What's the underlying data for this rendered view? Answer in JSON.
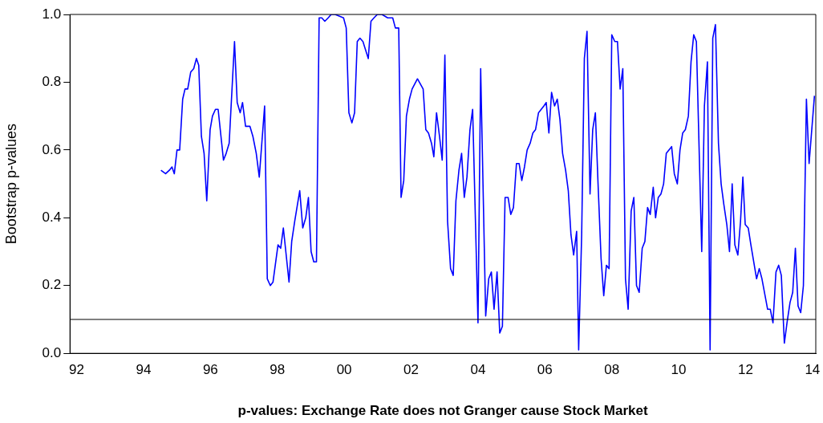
{
  "chart_data": {
    "type": "line",
    "xlabel": "p-values: Exchange Rate does not Granger cause Stock Market",
    "ylabel": "Bootstrap p-values",
    "xlim": [
      1991.8,
      2014.1
    ],
    "xticks": [
      {
        "value": 1992,
        "label": "92"
      },
      {
        "value": 1994,
        "label": "94"
      },
      {
        "value": 1996,
        "label": "96"
      },
      {
        "value": 1998,
        "label": "98"
      },
      {
        "value": 2000,
        "label": "00"
      },
      {
        "value": 2002,
        "label": "02"
      },
      {
        "value": 2004,
        "label": "04"
      },
      {
        "value": 2006,
        "label": "06"
      },
      {
        "value": 2008,
        "label": "08"
      },
      {
        "value": 2010,
        "label": "10"
      },
      {
        "value": 2012,
        "label": "12"
      },
      {
        "value": 2014,
        "label": "14"
      }
    ],
    "ylim": [
      0,
      1
    ],
    "yticks": [
      {
        "value": 0,
        "label": "0.0"
      },
      0.2,
      0.4,
      0.6,
      0.8,
      {
        "value": 1,
        "label": "1.0"
      }
    ],
    "grid": false,
    "marker": "none",
    "line_style": "solid",
    "color": "#0000ff",
    "ref_lines": [
      {
        "axis": "y",
        "value": 0.1,
        "color": "#000000"
      }
    ],
    "x": [
      1994.52,
      1994.66,
      1994.77,
      1994.85,
      1994.92,
      1995.0,
      1995.08,
      1995.17,
      1995.24,
      1995.32,
      1995.41,
      1995.5,
      1995.58,
      1995.65,
      1995.73,
      1995.81,
      1995.89,
      1995.99,
      1996.06,
      1996.15,
      1996.23,
      1996.39,
      1996.47,
      1996.56,
      1996.72,
      1996.8,
      1996.89,
      1996.96,
      1997.05,
      1997.18,
      1997.27,
      1997.37,
      1997.46,
      1997.62,
      1997.7,
      1997.79,
      1997.87,
      1998.02,
      1998.1,
      1998.18,
      1998.35,
      1998.43,
      1998.52,
      1998.67,
      1998.76,
      1998.85,
      1998.93,
      1999.01,
      1999.09,
      1999.17,
      1999.25,
      1999.33,
      1999.42,
      1999.52,
      1999.61,
      1999.69,
      1999.73,
      1999.98,
      2000.06,
      2000.14,
      2000.23,
      2000.31,
      2000.39,
      2000.47,
      2000.56,
      2000.72,
      2000.8,
      2000.89,
      2000.99,
      2001.13,
      2001.3,
      2001.45,
      2001.53,
      2001.63,
      2001.7,
      2001.78,
      2001.86,
      2001.95,
      2002.03,
      2002.19,
      2002.36,
      2002.44,
      2002.52,
      2002.61,
      2002.68,
      2002.76,
      2002.85,
      2002.93,
      2003.01,
      2003.09,
      2003.18,
      2003.26,
      2003.34,
      2003.43,
      2003.51,
      2003.59,
      2003.67,
      2003.76,
      2003.84,
      2004.0,
      2004.08,
      2004.23,
      2004.32,
      2004.4,
      2004.48,
      2004.57,
      2004.65,
      2004.73,
      2004.81,
      2004.9,
      2004.98,
      2005.06,
      2005.15,
      2005.23,
      2005.31,
      2005.39,
      2005.47,
      2005.56,
      2005.64,
      2005.72,
      2005.81,
      2005.97,
      2006.04,
      2006.12,
      2006.2,
      2006.29,
      2006.37,
      2006.45,
      2006.53,
      2006.62,
      2006.7,
      2006.78,
      2006.86,
      2006.95,
      2007.01,
      2007.1,
      2007.18,
      2007.26,
      2007.35,
      2007.43,
      2007.51,
      2007.59,
      2007.68,
      2007.76,
      2007.84,
      2007.92,
      2008.0,
      2008.09,
      2008.17,
      2008.25,
      2008.33,
      2008.41,
      2008.49,
      2008.58,
      2008.66,
      2008.74,
      2008.82,
      2008.91,
      2008.99,
      2009.07,
      2009.15,
      2009.24,
      2009.31,
      2009.39,
      2009.47,
      2009.55,
      2009.63,
      2009.79,
      2009.87,
      2009.96,
      2010.04,
      2010.12,
      2010.2,
      2010.29,
      2010.37,
      2010.45,
      2010.53,
      2010.69,
      2010.77,
      2010.86,
      2010.94,
      2011.02,
      2011.1,
      2011.19,
      2011.27,
      2011.35,
      2011.44,
      2011.52,
      2011.6,
      2011.68,
      2011.77,
      2011.85,
      2011.92,
      2011.99,
      2012.08,
      2012.16,
      2012.33,
      2012.41,
      2012.49,
      2012.66,
      2012.74,
      2012.82,
      2012.91,
      2012.99,
      2013.07,
      2013.16,
      2013.24,
      2013.33,
      2013.41,
      2013.49,
      2013.57,
      2013.65,
      2013.73,
      2013.82,
      2013.9,
      2014.06
    ],
    "values": [
      0.54,
      0.53,
      0.54,
      0.55,
      0.53,
      0.6,
      0.6,
      0.75,
      0.78,
      0.78,
      0.83,
      0.84,
      0.87,
      0.85,
      0.64,
      0.59,
      0.45,
      0.66,
      0.7,
      0.72,
      0.72,
      0.57,
      0.59,
      0.62,
      0.92,
      0.74,
      0.71,
      0.74,
      0.67,
      0.67,
      0.64,
      0.59,
      0.52,
      0.73,
      0.22,
      0.2,
      0.21,
      0.32,
      0.31,
      0.37,
      0.21,
      0.33,
      0.39,
      0.48,
      0.37,
      0.4,
      0.46,
      0.3,
      0.27,
      0.27,
      0.99,
      0.99,
      0.98,
      0.99,
      1.0,
      1.0,
      1.0,
      0.99,
      0.96,
      0.71,
      0.68,
      0.71,
      0.92,
      0.93,
      0.92,
      0.87,
      0.98,
      0.99,
      1.0,
      1.0,
      0.99,
      0.99,
      0.96,
      0.96,
      0.46,
      0.51,
      0.7,
      0.75,
      0.78,
      0.81,
      0.78,
      0.66,
      0.65,
      0.62,
      0.58,
      0.71,
      0.64,
      0.57,
      0.88,
      0.39,
      0.25,
      0.23,
      0.45,
      0.54,
      0.59,
      0.46,
      0.52,
      0.66,
      0.72,
      0.09,
      0.84,
      0.11,
      0.22,
      0.24,
      0.13,
      0.24,
      0.06,
      0.08,
      0.46,
      0.46,
      0.41,
      0.43,
      0.56,
      0.56,
      0.51,
      0.55,
      0.6,
      0.62,
      0.65,
      0.66,
      0.71,
      0.73,
      0.74,
      0.65,
      0.77,
      0.73,
      0.75,
      0.69,
      0.59,
      0.54,
      0.48,
      0.35,
      0.29,
      0.36,
      0.01,
      0.35,
      0.87,
      0.95,
      0.47,
      0.66,
      0.71,
      0.5,
      0.28,
      0.17,
      0.26,
      0.25,
      0.94,
      0.92,
      0.92,
      0.78,
      0.84,
      0.22,
      0.13,
      0.42,
      0.46,
      0.2,
      0.18,
      0.31,
      0.33,
      0.43,
      0.41,
      0.49,
      0.4,
      0.46,
      0.47,
      0.5,
      0.59,
      0.61,
      0.53,
      0.5,
      0.6,
      0.65,
      0.66,
      0.7,
      0.86,
      0.94,
      0.92,
      0.3,
      0.73,
      0.86,
      0.01,
      0.93,
      0.97,
      0.62,
      0.5,
      0.44,
      0.38,
      0.3,
      0.5,
      0.32,
      0.29,
      0.39,
      0.52,
      0.38,
      0.37,
      0.32,
      0.22,
      0.25,
      0.22,
      0.13,
      0.13,
      0.09,
      0.24,
      0.26,
      0.23,
      0.03,
      0.09,
      0.15,
      0.18,
      0.31,
      0.14,
      0.12,
      0.2,
      0.75,
      0.56,
      0.76
    ]
  }
}
